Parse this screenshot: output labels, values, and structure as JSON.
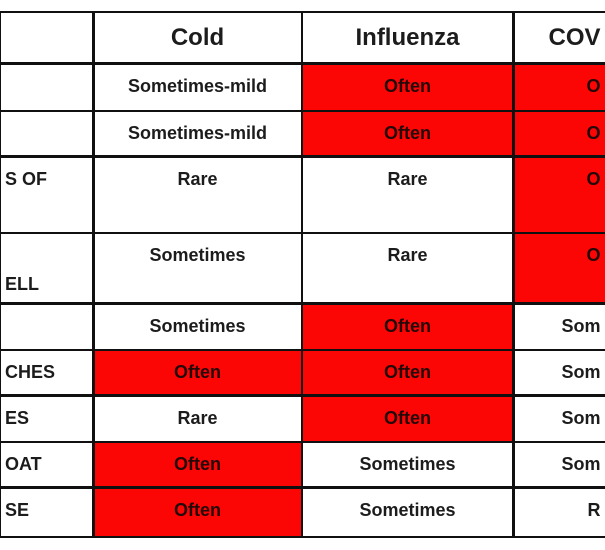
{
  "table": {
    "title_semantics": "symptom comparison table (cropped at left and right edges)",
    "header": {
      "symptom": "",
      "cold": "Cold",
      "influenza": "Influenza",
      "covid": "COV"
    },
    "rows": [
      {
        "label": "",
        "cold": "Sometimes-mild",
        "influenza": "Often",
        "covid": "O",
        "red": {
          "cold": false,
          "influenza": true,
          "covid": true
        }
      },
      {
        "label": "",
        "cold": "Sometimes-mild",
        "influenza": "Often",
        "covid": "O",
        "red": {
          "cold": false,
          "influenza": true,
          "covid": true
        }
      },
      {
        "label": "S OF",
        "cold": "Rare",
        "influenza": "Rare",
        "covid": "O",
        "red": {
          "cold": false,
          "influenza": false,
          "covid": true
        }
      },
      {
        "label": "ELL",
        "cold": "Sometimes",
        "influenza": "Rare",
        "covid": "O",
        "red": {
          "cold": false,
          "influenza": false,
          "covid": true
        }
      },
      {
        "label": "",
        "cold": "Sometimes",
        "influenza": "Often",
        "covid": "Som",
        "red": {
          "cold": false,
          "influenza": true,
          "covid": false
        }
      },
      {
        "label": "CHES",
        "cold": "Often",
        "influenza": "Often",
        "covid": "Som",
        "red": {
          "cold": true,
          "influenza": true,
          "covid": false
        }
      },
      {
        "label": "ES",
        "cold": "Rare",
        "influenza": "Often",
        "covid": "Som",
        "red": {
          "cold": false,
          "influenza": true,
          "covid": false
        }
      },
      {
        "label": "OAT",
        "cold": "Often",
        "influenza": "Sometimes",
        "covid": "Som",
        "red": {
          "cold": true,
          "influenza": false,
          "covid": false
        }
      },
      {
        "label": "SE",
        "cold": "Often",
        "influenza": "Sometimes",
        "covid": "R",
        "red": {
          "cold": true,
          "influenza": false,
          "covid": false
        }
      }
    ]
  },
  "colors": {
    "highlight_red": "#fb0505",
    "grid_border": "#101010",
    "text": "#1c1c1c",
    "background": "#ffffff"
  }
}
